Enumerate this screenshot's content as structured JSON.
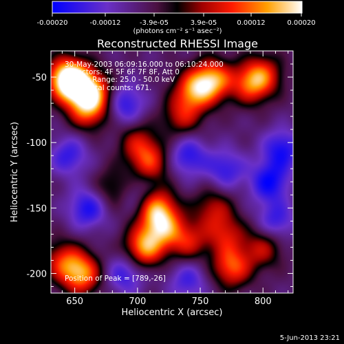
{
  "colorbar": {
    "ticks": [
      "-0.00020",
      "-0.00012",
      "-3.9e-05",
      "3.9e-05",
      "0.00012",
      "0.00020"
    ],
    "unit_label": "(photons cm⁻² s⁻¹ asec⁻²)",
    "range": [
      -0.0002,
      0.0002
    ],
    "colors": [
      "#0000ff",
      "#6a30c8",
      "#6a1a5a",
      "#000000",
      "#a00000",
      "#ff1a00",
      "#ffa000",
      "#ffffff"
    ]
  },
  "info": {
    "time_range": "30-May-2003 06:09:16.000 to 06:10:24.000",
    "detectors": "Detectors: 4F 5F 6F 7F 8F, Att 0",
    "energy": "Energy Range: 25.0 - 50.0 keV",
    "clean": "Clean     Total counts: 671.",
    "peak": "Position of Peak = [789,-26]"
  },
  "footer_date": "5-Jun-2013 23:21",
  "chart_data": {
    "type": "heatmap",
    "title": "Reconstructed RHESSI Image",
    "xlabel": "Heliocentric X (arcsec)",
    "ylabel": "Heliocentric Y (arcsec)",
    "xlim": [
      631,
      824
    ],
    "ylim": [
      -215,
      -30
    ],
    "xticks": [
      "650",
      "700",
      "750",
      "800"
    ],
    "yticks": [
      "-50",
      "-100",
      "-150",
      "-200"
    ],
    "peak_position": [
      789,
      -26
    ],
    "blobs": [
      {
        "x": 650,
        "y": -55,
        "v": 1.0
      },
      {
        "x": 642,
        "y": -50,
        "v": 0.9
      },
      {
        "x": 665,
        "y": -62,
        "v": 0.8
      },
      {
        "x": 660,
        "y": -75,
        "v": 0.7
      },
      {
        "x": 700,
        "y": -100,
        "v": 0.5
      },
      {
        "x": 710,
        "y": -115,
        "v": 0.65
      },
      {
        "x": 745,
        "y": -60,
        "v": 0.85
      },
      {
        "x": 760,
        "y": -52,
        "v": 0.95
      },
      {
        "x": 735,
        "y": -80,
        "v": 0.55
      },
      {
        "x": 790,
        "y": -55,
        "v": 0.7
      },
      {
        "x": 800,
        "y": -48,
        "v": 0.6
      },
      {
        "x": 715,
        "y": -150,
        "v": 0.9
      },
      {
        "x": 720,
        "y": -165,
        "v": 0.75
      },
      {
        "x": 705,
        "y": -180,
        "v": 0.95
      },
      {
        "x": 740,
        "y": -175,
        "v": 0.6
      },
      {
        "x": 760,
        "y": -150,
        "v": 0.5
      },
      {
        "x": 770,
        "y": -170,
        "v": 0.55
      },
      {
        "x": 800,
        "y": -180,
        "v": 0.55
      },
      {
        "x": 775,
        "y": -195,
        "v": 0.8
      },
      {
        "x": 655,
        "y": -200,
        "v": 0.95
      },
      {
        "x": 640,
        "y": -190,
        "v": 0.6
      },
      {
        "x": 680,
        "y": -135,
        "v": 0.4
      },
      {
        "x": 660,
        "y": -150,
        "v": -0.6
      },
      {
        "x": 645,
        "y": -110,
        "v": -0.5
      },
      {
        "x": 690,
        "y": -70,
        "v": -0.55
      },
      {
        "x": 740,
        "y": -110,
        "v": -0.55
      },
      {
        "x": 770,
        "y": -120,
        "v": -0.5
      },
      {
        "x": 805,
        "y": -130,
        "v": -0.65
      },
      {
        "x": 815,
        "y": -105,
        "v": -0.6
      },
      {
        "x": 810,
        "y": -160,
        "v": -0.5
      },
      {
        "x": 690,
        "y": -200,
        "v": -0.5
      },
      {
        "x": 740,
        "y": -205,
        "v": -0.45
      },
      {
        "x": 700,
        "y": -140,
        "v": -0.3
      }
    ]
  }
}
